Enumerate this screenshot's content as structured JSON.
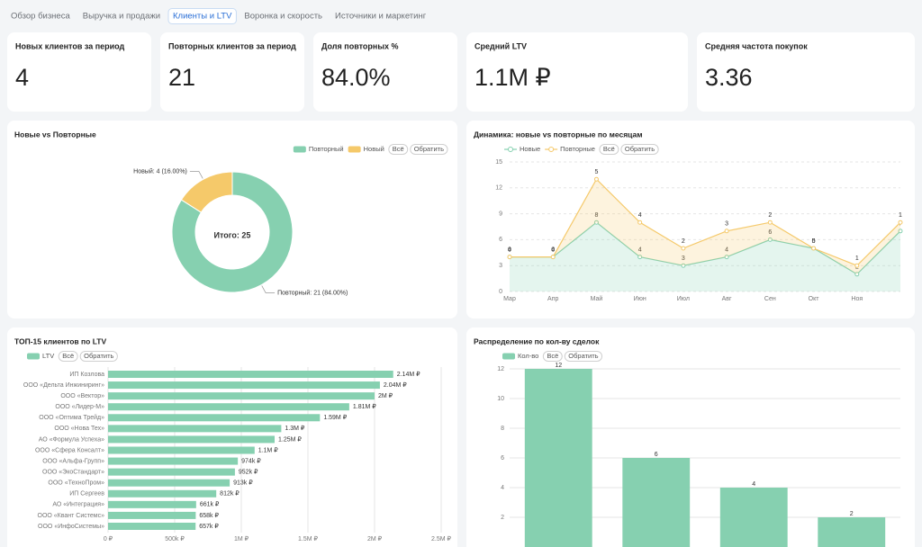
{
  "tabs": [
    "Обзор бизнеса",
    "Выручка и продажи",
    "Клиенты и LTV",
    "Воронка и скорость",
    "Источники и маркетинг"
  ],
  "active_tab": 2,
  "kpis": [
    {
      "label": "Новых клиентов за период",
      "value": "4"
    },
    {
      "label": "Повторных клиентов за период",
      "value": "21"
    },
    {
      "label": "Доля повторных %",
      "value": "84.0%"
    },
    {
      "label": "Средний LTV",
      "value": "1.1M ₽"
    },
    {
      "label": "Средняя частота покупок",
      "value": "3.36"
    }
  ],
  "chart_data": [
    {
      "type": "pie",
      "title": "Новые vs Повторные",
      "donut": true,
      "categories": [
        "Повторный",
        "Новый"
      ],
      "values": [
        21,
        4
      ],
      "value_labels": [
        "Повторный: 21 (84.00%)",
        "Новый: 4 (16.00%)"
      ],
      "colors": [
        "#86d0b0",
        "#f5c96a"
      ],
      "center_label": "Итого: 25",
      "legend_buttons": [
        "Всё",
        "Обратить"
      ]
    },
    {
      "type": "area",
      "title": "Динамика: новые vs повторные по месяцам",
      "stacked": true,
      "categories": [
        "Мар",
        "Апр",
        "Май",
        "Июн",
        "Июл",
        "Авг",
        "Сен",
        "Окт",
        "Ноя",
        null
      ],
      "series": [
        {
          "name": "Новые",
          "color": "#86d0b0",
          "values": [
            4,
            4,
            8,
            4,
            3,
            4,
            6,
            5,
            2,
            7
          ]
        },
        {
          "name": "Повторные",
          "color": "#f5c96a",
          "values": [
            0,
            0,
            5,
            4,
            2,
            3,
            2,
            0,
            1,
            1
          ]
        }
      ],
      "ylim": [
        0,
        15
      ],
      "yticks": [
        0,
        3,
        6,
        9,
        12,
        15
      ],
      "grid": true,
      "legend_buttons": [
        "Всё",
        "Обратить"
      ]
    },
    {
      "type": "hbar",
      "title": "ТОП-15 клиентов по LTV",
      "categories": [
        "ИП Козлова",
        "ООО «Дельта Инжиниринг»",
        "ООО «Вектор»",
        "ООО «Лидер-М»",
        "ООО «Оптима Трейд»",
        "ООО «Нова Тех»",
        "АО «Формула Успеха»",
        "ООО «Сфера Консалт»",
        "ООО «Альфа-Групп»",
        "ООО «ЭкоСтандарт»",
        "ООО «ТехноПром»",
        "ИП Сергеев",
        "АО «Интеграция»",
        "ООО «Квант Системс»",
        "ООО «ИнфоСистемы»"
      ],
      "series": [
        {
          "name": "LTV",
          "color": "#86d0b0",
          "values": [
            2140000,
            2040000,
            2000000,
            1810000,
            1590000,
            1300000,
            1250000,
            1100000,
            974000,
            952000,
            913000,
            812000,
            661000,
            658000,
            657000
          ],
          "value_labels": [
            "2.14M ₽",
            "2.04M ₽",
            "2M ₽",
            "1.81M ₽",
            "1.59M ₽",
            "1.3M ₽",
            "1.25M ₽",
            "1.1M ₽",
            "974k ₽",
            "952k ₽",
            "913k ₽",
            "812k ₽",
            "661k ₽",
            "658k ₽",
            "657k ₽"
          ]
        }
      ],
      "xlim": [
        0,
        2500000
      ],
      "xticks": [
        {
          "value": 0,
          "label": "0 ₽"
        },
        {
          "value": 500000,
          "label": "500k ₽"
        },
        {
          "value": 1000000,
          "label": "1M ₽"
        },
        {
          "value": 1500000,
          "label": "1.5M ₽"
        },
        {
          "value": 2000000,
          "label": "2M ₽"
        },
        {
          "value": 2500000,
          "label": "2.5M ₽"
        }
      ],
      "grid": true,
      "legend_buttons": [
        "Всё",
        "Обратить"
      ]
    },
    {
      "type": "bar",
      "title": "Распределение по кол-ву сделок",
      "categories": [
        null,
        null,
        null,
        null
      ],
      "series": [
        {
          "name": "Кол-во",
          "color": "#86d0b0",
          "values": [
            12,
            6,
            4,
            2
          ]
        }
      ],
      "ylim": [
        0,
        12
      ],
      "yticks": [
        2,
        4,
        6,
        8,
        10,
        12
      ],
      "grid": true,
      "legend_buttons": [
        "Всё",
        "Обратить"
      ]
    }
  ]
}
